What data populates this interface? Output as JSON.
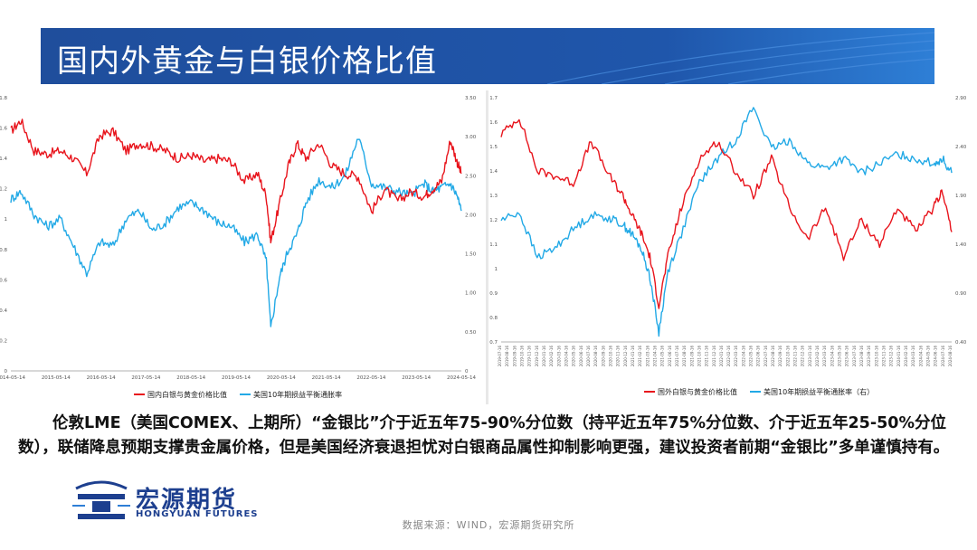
{
  "page": {
    "title": "国内外黄金与白银价格比值",
    "paragraph": "伦敦LME（美国COMEX、上期所）“金银比”介于近五年75-90%分位数（持平近五年75%分位数、介于近五年25-50%分位数），联储降息预期支撑贵金属价格，但是美国经济衰退担忧对白银商品属性抑制影响更强，建议投资者前期“金银比”多单谨慎持有。",
    "logo_name": "宏源期货",
    "logo_en": "HONGYUAN FUTURES",
    "source": "数据来源：WIND，宏源期货研究所"
  },
  "colors": {
    "banner": "#1f4e9c",
    "red": "#e8141c",
    "blue": "#22a9e6"
  },
  "chart_data": [
    {
      "type": "line",
      "title": "",
      "x_ticks": [
        "2014-05-14",
        "2015-05-14",
        "2016-05-14",
        "2017-05-14",
        "2018-05-14",
        "2019-05-14",
        "2020-05-14",
        "2021-05-14",
        "2022-05-14",
        "2023-05-14",
        "2024-05-14"
      ],
      "y_left": {
        "lim": [
          0,
          1.8
        ],
        "ticks": [
          "0",
          "0.2",
          "0.4",
          "0.6",
          "0.8",
          "1",
          "1.2",
          "1.4",
          "1.6",
          "1.8"
        ]
      },
      "y_right": {
        "lim": [
          0,
          3.5
        ],
        "ticks": [
          "0",
          "0.50",
          "1.00",
          "1.50",
          "2.00",
          "2.50",
          "3.00",
          "3.50"
        ]
      },
      "series": [
        {
          "name": "国内白银与黄金价格比值",
          "axis": "left",
          "x": [
            2014.37,
            2014.6,
            2014.9,
            2015.2,
            2015.5,
            2015.8,
            2016.1,
            2016.4,
            2016.7,
            2017.0,
            2017.3,
            2017.6,
            2017.9,
            2018.2,
            2018.5,
            2018.8,
            2019.1,
            2019.4,
            2019.7,
            2020.0,
            2020.2,
            2020.3,
            2020.5,
            2020.7,
            2020.9,
            2021.1,
            2021.4,
            2021.7,
            2022.0,
            2022.3,
            2022.6,
            2022.9,
            2023.2,
            2023.5,
            2023.8,
            2024.0,
            2024.2,
            2024.4,
            2024.55,
            2024.65
          ],
          "values": [
            1.58,
            1.65,
            1.45,
            1.43,
            1.45,
            1.4,
            1.3,
            1.55,
            1.58,
            1.45,
            1.5,
            1.48,
            1.45,
            1.4,
            1.42,
            1.38,
            1.4,
            1.38,
            1.25,
            1.3,
            1.15,
            0.85,
            1.1,
            1.35,
            1.5,
            1.4,
            1.5,
            1.35,
            1.3,
            1.28,
            1.05,
            1.2,
            1.12,
            1.18,
            1.15,
            1.2,
            1.25,
            1.52,
            1.38,
            1.3
          ]
        },
        {
          "name": "美国10年期损益平衡通胀率",
          "axis": "right",
          "x": [
            2014.37,
            2014.6,
            2014.9,
            2015.2,
            2015.5,
            2015.8,
            2016.1,
            2016.4,
            2016.7,
            2017.0,
            2017.3,
            2017.6,
            2017.9,
            2018.2,
            2018.5,
            2018.8,
            2019.1,
            2019.4,
            2019.7,
            2020.0,
            2020.2,
            2020.3,
            2020.5,
            2020.7,
            2020.9,
            2021.1,
            2021.4,
            2021.7,
            2022.0,
            2022.3,
            2022.6,
            2022.9,
            2023.2,
            2023.5,
            2023.8,
            2024.0,
            2024.2,
            2024.4,
            2024.55,
            2024.65
          ],
          "values": [
            2.2,
            2.3,
            2.0,
            1.85,
            1.95,
            1.6,
            1.25,
            1.65,
            1.6,
            1.95,
            2.05,
            1.8,
            1.9,
            2.1,
            2.15,
            2.05,
            1.9,
            1.85,
            1.65,
            1.75,
            1.4,
            0.55,
            1.2,
            1.55,
            1.75,
            2.15,
            2.45,
            2.35,
            2.5,
            3.0,
            2.4,
            2.35,
            2.3,
            2.25,
            2.4,
            2.3,
            2.35,
            2.4,
            2.25,
            2.05
          ]
        }
      ]
    },
    {
      "type": "line",
      "title": "",
      "x_ticks": [
        "2019-07-16",
        "2019-08-16",
        "2019-09-16",
        "2019-10-16",
        "2019-11-16",
        "2019-12-16",
        "2020-01-16",
        "2020-02-16",
        "2020-03-16",
        "2020-04-16",
        "2020-05-16",
        "2020-06-16",
        "2020-07-16",
        "2020-08-16",
        "2020-09-16",
        "2020-10-16",
        "2020-11-16",
        "2020-12-16",
        "2021-01-16",
        "2021-02-16",
        "2021-03-16",
        "2021-04-16",
        "2021-05-16",
        "2021-06-16",
        "2021-07-16",
        "2021-08-16",
        "2021-09-16",
        "2021-10-16",
        "2021-11-16",
        "2021-12-16",
        "2022-01-16",
        "2022-02-16",
        "2022-03-16",
        "2022-04-16",
        "2022-05-16",
        "2022-06-16",
        "2022-07-16",
        "2022-08-16",
        "2022-09-16",
        "2022-10-16",
        "2022-11-16",
        "2022-12-16",
        "2023-01-16",
        "2023-02-16",
        "2023-03-16",
        "2023-04-16",
        "2023-05-16",
        "2023-06-16",
        "2023-07-16",
        "2023-08-16",
        "2023-09-16",
        "2023-10-16",
        "2023-11-16",
        "2023-12-16",
        "2024-01-16",
        "2024-02-16",
        "2024-03-16",
        "2024-04-16",
        "2024-05-16",
        "2024-06-16",
        "2024-07-16",
        "2024-08-16"
      ],
      "y_left": {
        "lim": [
          0.7,
          1.7
        ],
        "ticks": [
          "0.7",
          "0.8",
          "0.9",
          "1",
          "1.1",
          "1.2",
          "1.3",
          "1.4",
          "1.5",
          "1.6",
          "1.7"
        ]
      },
      "y_right": {
        "lim": [
          0.4,
          3.0
        ],
        "ticks": [
          "0.40",
          "0.90",
          "1.40",
          "1.90",
          "2.40",
          "2.90"
        ]
      },
      "series": [
        {
          "name": "国外白银与黄金价格比值",
          "axis": "left",
          "x": [
            0,
            0.04,
            0.08,
            0.12,
            0.16,
            0.2,
            0.24,
            0.27,
            0.29,
            0.31,
            0.33,
            0.35,
            0.37,
            0.4,
            0.44,
            0.48,
            0.52,
            0.56,
            0.6,
            0.64,
            0.68,
            0.72,
            0.76,
            0.8,
            0.84,
            0.88,
            0.92,
            0.96,
            0.98,
            1.0
          ],
          "values": [
            1.55,
            1.62,
            1.4,
            1.38,
            1.35,
            1.52,
            1.38,
            1.3,
            1.22,
            1.15,
            1.05,
            0.85,
            1.05,
            1.25,
            1.45,
            1.52,
            1.4,
            1.3,
            1.45,
            1.25,
            1.12,
            1.25,
            1.05,
            1.2,
            1.1,
            1.25,
            1.15,
            1.25,
            1.32,
            1.15
          ]
        },
        {
          "name": "美国10年期损益平衡通胀率（右）",
          "axis": "right",
          "x": [
            0,
            0.04,
            0.08,
            0.12,
            0.16,
            0.2,
            0.24,
            0.27,
            0.29,
            0.31,
            0.33,
            0.35,
            0.37,
            0.4,
            0.44,
            0.48,
            0.52,
            0.56,
            0.6,
            0.64,
            0.68,
            0.72,
            0.76,
            0.8,
            0.84,
            0.88,
            0.92,
            0.96,
            0.98,
            1.0
          ],
          "values": [
            1.7,
            1.78,
            1.3,
            1.4,
            1.6,
            1.75,
            1.72,
            1.65,
            1.55,
            1.4,
            1.1,
            0.5,
            1.15,
            1.55,
            2.1,
            2.35,
            2.55,
            2.9,
            2.45,
            2.55,
            2.3,
            2.25,
            2.35,
            2.2,
            2.3,
            2.4,
            2.35,
            2.3,
            2.35,
            2.2
          ]
        }
      ]
    }
  ]
}
